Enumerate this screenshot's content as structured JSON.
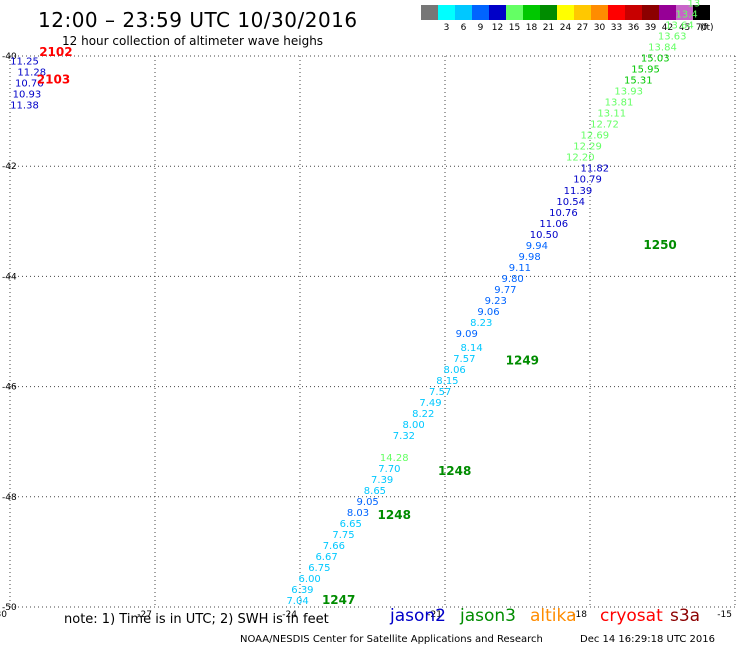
{
  "header": {
    "title": "12:00 – 23:59 UTC 10/30/2016",
    "subtitle": "12 hour collection of altimeter wave heighs"
  },
  "legend": {
    "unit_label": "(ft)",
    "items": [
      {
        "label": "",
        "color": "#777777"
      },
      {
        "label": "3",
        "color": "#00ffff"
      },
      {
        "label": "6",
        "color": "#00c8ff"
      },
      {
        "label": "9",
        "color": "#0064ff"
      },
      {
        "label": "12",
        "color": "#0000c8"
      },
      {
        "label": "15",
        "color": "#64ff64"
      },
      {
        "label": "18",
        "color": "#00c800"
      },
      {
        "label": "21",
        "color": "#008c00"
      },
      {
        "label": "24",
        "color": "#ffff00"
      },
      {
        "label": "27",
        "color": "#ffc800"
      },
      {
        "label": "30",
        "color": "#ff8c00"
      },
      {
        "label": "33",
        "color": "#ff0000"
      },
      {
        "label": "36",
        "color": "#c80000"
      },
      {
        "label": "39",
        "color": "#8c0000"
      },
      {
        "label": "42",
        "color": "#960096"
      },
      {
        "label": "45",
        "color": "#c864c8"
      },
      {
        "label": "70",
        "color": "#000000"
      }
    ]
  },
  "map": {
    "lon_ticks": [
      -30,
      -27,
      -24,
      -21,
      -18,
      -15
    ],
    "lat_ticks": [
      -40,
      -42,
      -44,
      -46,
      -48,
      -50
    ],
    "observations": [
      {
        "lon": -29.7,
        "lat": -40.15,
        "text": "11.25",
        "color": "#0000c8"
      },
      {
        "lon": -29.55,
        "lat": -40.35,
        "text": "11.28",
        "color": "#0000c8"
      },
      {
        "lon": -29.6,
        "lat": -40.55,
        "text": "10.76",
        "color": "#0000c8"
      },
      {
        "lon": -29.65,
        "lat": -40.75,
        "text": "10.93",
        "color": "#0000c8"
      },
      {
        "lon": -29.7,
        "lat": -40.95,
        "text": "11.38",
        "color": "#0000c8"
      },
      {
        "lon": -24.05,
        "lat": -49.95,
        "text": "7.04",
        "color": "#00c8ff"
      },
      {
        "lon": -23.95,
        "lat": -49.75,
        "text": "6.39",
        "color": "#00c8ff"
      },
      {
        "lon": -23.8,
        "lat": -49.55,
        "text": "6.00",
        "color": "#00c8ff"
      },
      {
        "lon": -23.6,
        "lat": -49.35,
        "text": "6.75",
        "color": "#00c8ff"
      },
      {
        "lon": -23.45,
        "lat": -49.15,
        "text": "6.67",
        "color": "#00c8ff"
      },
      {
        "lon": -23.3,
        "lat": -48.95,
        "text": "7.66",
        "color": "#00c8ff"
      },
      {
        "lon": -23.1,
        "lat": -48.75,
        "text": "7.75",
        "color": "#00c8ff"
      },
      {
        "lon": -22.95,
        "lat": -48.55,
        "text": "6.65",
        "color": "#00c8ff"
      },
      {
        "lon": -22.8,
        "lat": -48.35,
        "text": "8.03",
        "color": "#0064ff"
      },
      {
        "lon": -22.6,
        "lat": -48.15,
        "text": "9.05",
        "color": "#0064ff"
      },
      {
        "lon": -22.45,
        "lat": -47.95,
        "text": "8.65",
        "color": "#00c8ff"
      },
      {
        "lon": -22.3,
        "lat": -47.75,
        "text": "7.39",
        "color": "#00c8ff"
      },
      {
        "lon": -22.15,
        "lat": -47.55,
        "text": "7.70",
        "color": "#00c8ff"
      },
      {
        "lon": -22.05,
        "lat": -47.35,
        "text": "14.28",
        "color": "#64ff64"
      },
      {
        "lon": -21.85,
        "lat": -46.95,
        "text": "7.32",
        "color": "#00c8ff"
      },
      {
        "lon": -21.65,
        "lat": -46.75,
        "text": "8.00",
        "color": "#00c8ff"
      },
      {
        "lon": -21.45,
        "lat": -46.55,
        "text": "8.22",
        "color": "#00c8ff"
      },
      {
        "lon": -21.3,
        "lat": -46.35,
        "text": "7.49",
        "color": "#00c8ff"
      },
      {
        "lon": -21.1,
        "lat": -46.15,
        "text": "7.57",
        "color": "#00c8ff"
      },
      {
        "lon": -20.95,
        "lat": -45.95,
        "text": "8.15",
        "color": "#00c8ff"
      },
      {
        "lon": -20.8,
        "lat": -45.75,
        "text": "8.06",
        "color": "#00c8ff"
      },
      {
        "lon": -20.6,
        "lat": -45.55,
        "text": "7.57",
        "color": "#00c8ff"
      },
      {
        "lon": -20.45,
        "lat": -45.35,
        "text": "8.14",
        "color": "#00c8ff"
      },
      {
        "lon": -20.55,
        "lat": -45.1,
        "text": "9.09",
        "color": "#0064ff"
      },
      {
        "lon": -20.25,
        "lat": -44.9,
        "text": "8.23",
        "color": "#00c8ff"
      },
      {
        "lon": -20.1,
        "lat": -44.7,
        "text": "9.06",
        "color": "#0064ff"
      },
      {
        "lon": -19.95,
        "lat": -44.5,
        "text": "9.23",
        "color": "#0064ff"
      },
      {
        "lon": -19.75,
        "lat": -44.3,
        "text": "9.77",
        "color": "#0064ff"
      },
      {
        "lon": -19.6,
        "lat": -44.1,
        "text": "9.80",
        "color": "#0064ff"
      },
      {
        "lon": -19.45,
        "lat": -43.9,
        "text": "9.11",
        "color": "#0064ff"
      },
      {
        "lon": -19.25,
        "lat": -43.7,
        "text": "9.98",
        "color": "#0064ff"
      },
      {
        "lon": -19.1,
        "lat": -43.5,
        "text": "9.94",
        "color": "#0064ff"
      },
      {
        "lon": -18.95,
        "lat": -43.3,
        "text": "10.50",
        "color": "#0000c8"
      },
      {
        "lon": -18.75,
        "lat": -43.1,
        "text": "11.06",
        "color": "#0000c8"
      },
      {
        "lon": -18.55,
        "lat": -42.9,
        "text": "10.76",
        "color": "#0000c8"
      },
      {
        "lon": -18.4,
        "lat": -42.7,
        "text": "10.54",
        "color": "#0000c8"
      },
      {
        "lon": -18.25,
        "lat": -42.5,
        "text": "11.39",
        "color": "#0000c8"
      },
      {
        "lon": -18.05,
        "lat": -42.3,
        "text": "10.79",
        "color": "#0000c8"
      },
      {
        "lon": -17.9,
        "lat": -42.1,
        "text": "11.82",
        "color": "#0000c8"
      },
      {
        "lon": -18.2,
        "lat": -41.9,
        "text": "12.20",
        "color": "#64ff64"
      },
      {
        "lon": -18.05,
        "lat": -41.7,
        "text": "12.29",
        "color": "#64ff64"
      },
      {
        "lon": -17.9,
        "lat": -41.5,
        "text": "12.69",
        "color": "#64ff64"
      },
      {
        "lon": -17.7,
        "lat": -41.3,
        "text": "12.72",
        "color": "#64ff64"
      },
      {
        "lon": -17.55,
        "lat": -41.1,
        "text": "13.11",
        "color": "#64ff64"
      },
      {
        "lon": -17.4,
        "lat": -40.9,
        "text": "13.81",
        "color": "#64ff64"
      },
      {
        "lon": -17.2,
        "lat": -40.7,
        "text": "13.93",
        "color": "#64ff64"
      },
      {
        "lon": -17.0,
        "lat": -40.5,
        "text": "15.31",
        "color": "#00c800"
      },
      {
        "lon": -16.85,
        "lat": -40.3,
        "text": "15.95",
        "color": "#00c800"
      },
      {
        "lon": -16.65,
        "lat": -40.1,
        "text": "15.03",
        "color": "#00c800"
      },
      {
        "lon": -16.5,
        "lat": -39.9,
        "text": "13.84",
        "color": "#64ff64"
      },
      {
        "lon": -16.3,
        "lat": -39.7,
        "text": "13.63",
        "color": "#64ff64"
      },
      {
        "lon": -16.15,
        "lat": -39.5,
        "text": "13.64",
        "color": "#64ff64"
      },
      {
        "lon": -16.0,
        "lat": -39.3,
        "text": "13.4",
        "color": "#64ff64"
      },
      {
        "lon": -15.85,
        "lat": -39.1,
        "text": "13",
        "color": "#64ff64"
      }
    ],
    "time_labels": [
      {
        "lon": -29.05,
        "lat": -40.0,
        "text": "2102",
        "color": "#ff0000"
      },
      {
        "lon": -29.1,
        "lat": -40.5,
        "text": "2103",
        "color": "#ff0000"
      },
      {
        "lon": -23.2,
        "lat": -49.95,
        "text": "1247",
        "color": "#008c00"
      },
      {
        "lon": -22.05,
        "lat": -48.4,
        "text": "1248",
        "color": "#008c00"
      },
      {
        "lon": -20.8,
        "lat": -47.6,
        "text": "1248",
        "color": "#008c00"
      },
      {
        "lon": -19.4,
        "lat": -45.6,
        "text": "1249",
        "color": "#008c00"
      },
      {
        "lon": -16.55,
        "lat": -43.5,
        "text": "1250",
        "color": "#008c00"
      }
    ]
  },
  "footer": {
    "note": "note: 1) Time is in UTC; 2) SWH is in feet",
    "satellites": [
      {
        "name": "jason2",
        "color": "#0000c8"
      },
      {
        "name": "jason3",
        "color": "#008c00"
      },
      {
        "name": "altika",
        "color": "#ff8c00"
      },
      {
        "name": "cryosat",
        "color": "#ff0000"
      },
      {
        "name": "s3a",
        "color": "#8c0000"
      }
    ],
    "credit": "NOAA/NESDIS Center for Satellite Applications and Research",
    "timestamp": "Dec 14 16:29:18 UTC 2016"
  }
}
